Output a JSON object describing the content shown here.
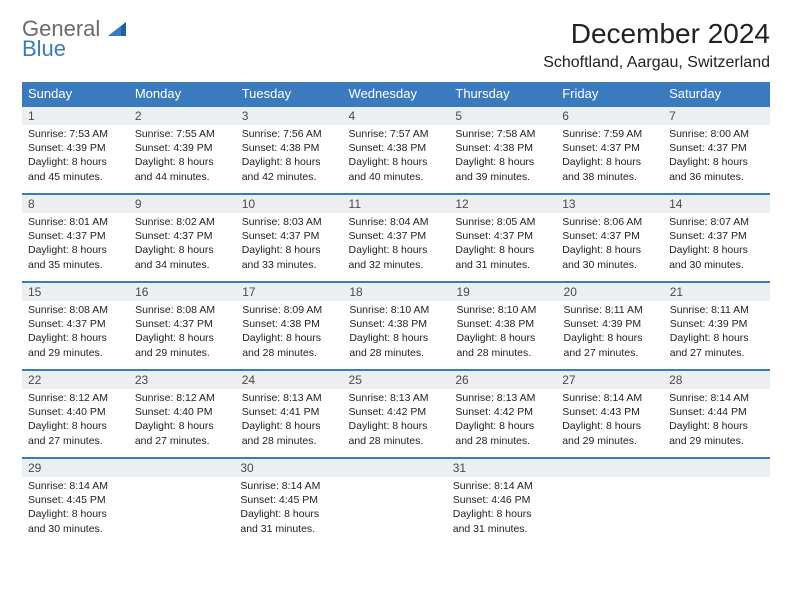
{
  "logo": {
    "part1": "General",
    "part2": "Blue"
  },
  "title": "December 2024",
  "location": "Schoftland, Aargau, Switzerland",
  "colors": {
    "header_bg": "#3a7bbf",
    "header_text": "#ffffff",
    "daynum_bg": "#eceff1",
    "border": "#3a7bbf",
    "text": "#222222",
    "logo_gray": "#6b6b6b",
    "logo_blue": "#3a7bbf"
  },
  "day_headers": [
    "Sunday",
    "Monday",
    "Tuesday",
    "Wednesday",
    "Thursday",
    "Friday",
    "Saturday"
  ],
  "weeks": [
    [
      {
        "n": "1",
        "sr": "Sunrise: 7:53 AM",
        "ss": "Sunset: 4:39 PM",
        "d1": "Daylight: 8 hours",
        "d2": "and 45 minutes."
      },
      {
        "n": "2",
        "sr": "Sunrise: 7:55 AM",
        "ss": "Sunset: 4:39 PM",
        "d1": "Daylight: 8 hours",
        "d2": "and 44 minutes."
      },
      {
        "n": "3",
        "sr": "Sunrise: 7:56 AM",
        "ss": "Sunset: 4:38 PM",
        "d1": "Daylight: 8 hours",
        "d2": "and 42 minutes."
      },
      {
        "n": "4",
        "sr": "Sunrise: 7:57 AM",
        "ss": "Sunset: 4:38 PM",
        "d1": "Daylight: 8 hours",
        "d2": "and 40 minutes."
      },
      {
        "n": "5",
        "sr": "Sunrise: 7:58 AM",
        "ss": "Sunset: 4:38 PM",
        "d1": "Daylight: 8 hours",
        "d2": "and 39 minutes."
      },
      {
        "n": "6",
        "sr": "Sunrise: 7:59 AM",
        "ss": "Sunset: 4:37 PM",
        "d1": "Daylight: 8 hours",
        "d2": "and 38 minutes."
      },
      {
        "n": "7",
        "sr": "Sunrise: 8:00 AM",
        "ss": "Sunset: 4:37 PM",
        "d1": "Daylight: 8 hours",
        "d2": "and 36 minutes."
      }
    ],
    [
      {
        "n": "8",
        "sr": "Sunrise: 8:01 AM",
        "ss": "Sunset: 4:37 PM",
        "d1": "Daylight: 8 hours",
        "d2": "and 35 minutes."
      },
      {
        "n": "9",
        "sr": "Sunrise: 8:02 AM",
        "ss": "Sunset: 4:37 PM",
        "d1": "Daylight: 8 hours",
        "d2": "and 34 minutes."
      },
      {
        "n": "10",
        "sr": "Sunrise: 8:03 AM",
        "ss": "Sunset: 4:37 PM",
        "d1": "Daylight: 8 hours",
        "d2": "and 33 minutes."
      },
      {
        "n": "11",
        "sr": "Sunrise: 8:04 AM",
        "ss": "Sunset: 4:37 PM",
        "d1": "Daylight: 8 hours",
        "d2": "and 32 minutes."
      },
      {
        "n": "12",
        "sr": "Sunrise: 8:05 AM",
        "ss": "Sunset: 4:37 PM",
        "d1": "Daylight: 8 hours",
        "d2": "and 31 minutes."
      },
      {
        "n": "13",
        "sr": "Sunrise: 8:06 AM",
        "ss": "Sunset: 4:37 PM",
        "d1": "Daylight: 8 hours",
        "d2": "and 30 minutes."
      },
      {
        "n": "14",
        "sr": "Sunrise: 8:07 AM",
        "ss": "Sunset: 4:37 PM",
        "d1": "Daylight: 8 hours",
        "d2": "and 30 minutes."
      }
    ],
    [
      {
        "n": "15",
        "sr": "Sunrise: 8:08 AM",
        "ss": "Sunset: 4:37 PM",
        "d1": "Daylight: 8 hours",
        "d2": "and 29 minutes."
      },
      {
        "n": "16",
        "sr": "Sunrise: 8:08 AM",
        "ss": "Sunset: 4:37 PM",
        "d1": "Daylight: 8 hours",
        "d2": "and 29 minutes."
      },
      {
        "n": "17",
        "sr": "Sunrise: 8:09 AM",
        "ss": "Sunset: 4:38 PM",
        "d1": "Daylight: 8 hours",
        "d2": "and 28 minutes."
      },
      {
        "n": "18",
        "sr": "Sunrise: 8:10 AM",
        "ss": "Sunset: 4:38 PM",
        "d1": "Daylight: 8 hours",
        "d2": "and 28 minutes."
      },
      {
        "n": "19",
        "sr": "Sunrise: 8:10 AM",
        "ss": "Sunset: 4:38 PM",
        "d1": "Daylight: 8 hours",
        "d2": "and 28 minutes."
      },
      {
        "n": "20",
        "sr": "Sunrise: 8:11 AM",
        "ss": "Sunset: 4:39 PM",
        "d1": "Daylight: 8 hours",
        "d2": "and 27 minutes."
      },
      {
        "n": "21",
        "sr": "Sunrise: 8:11 AM",
        "ss": "Sunset: 4:39 PM",
        "d1": "Daylight: 8 hours",
        "d2": "and 27 minutes."
      }
    ],
    [
      {
        "n": "22",
        "sr": "Sunrise: 8:12 AM",
        "ss": "Sunset: 4:40 PM",
        "d1": "Daylight: 8 hours",
        "d2": "and 27 minutes."
      },
      {
        "n": "23",
        "sr": "Sunrise: 8:12 AM",
        "ss": "Sunset: 4:40 PM",
        "d1": "Daylight: 8 hours",
        "d2": "and 27 minutes."
      },
      {
        "n": "24",
        "sr": "Sunrise: 8:13 AM",
        "ss": "Sunset: 4:41 PM",
        "d1": "Daylight: 8 hours",
        "d2": "and 28 minutes."
      },
      {
        "n": "25",
        "sr": "Sunrise: 8:13 AM",
        "ss": "Sunset: 4:42 PM",
        "d1": "Daylight: 8 hours",
        "d2": "and 28 minutes."
      },
      {
        "n": "26",
        "sr": "Sunrise: 8:13 AM",
        "ss": "Sunset: 4:42 PM",
        "d1": "Daylight: 8 hours",
        "d2": "and 28 minutes."
      },
      {
        "n": "27",
        "sr": "Sunrise: 8:14 AM",
        "ss": "Sunset: 4:43 PM",
        "d1": "Daylight: 8 hours",
        "d2": "and 29 minutes."
      },
      {
        "n": "28",
        "sr": "Sunrise: 8:14 AM",
        "ss": "Sunset: 4:44 PM",
        "d1": "Daylight: 8 hours",
        "d2": "and 29 minutes."
      }
    ],
    [
      {
        "n": "29",
        "sr": "Sunrise: 8:14 AM",
        "ss": "Sunset: 4:45 PM",
        "d1": "Daylight: 8 hours",
        "d2": "and 30 minutes."
      },
      {
        "n": "30",
        "sr": "Sunrise: 8:14 AM",
        "ss": "Sunset: 4:45 PM",
        "d1": "Daylight: 8 hours",
        "d2": "and 31 minutes."
      },
      {
        "n": "31",
        "sr": "Sunrise: 8:14 AM",
        "ss": "Sunset: 4:46 PM",
        "d1": "Daylight: 8 hours",
        "d2": "and 31 minutes."
      },
      {
        "n": "",
        "sr": "",
        "ss": "",
        "d1": "",
        "d2": ""
      },
      {
        "n": "",
        "sr": "",
        "ss": "",
        "d1": "",
        "d2": ""
      },
      {
        "n": "",
        "sr": "",
        "ss": "",
        "d1": "",
        "d2": ""
      },
      {
        "n": "",
        "sr": "",
        "ss": "",
        "d1": "",
        "d2": ""
      }
    ]
  ]
}
